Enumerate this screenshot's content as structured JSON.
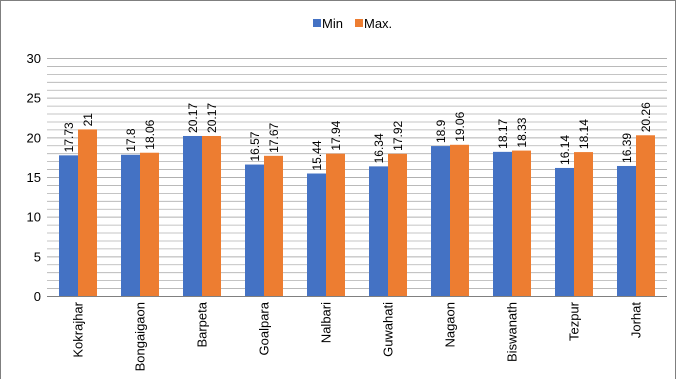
{
  "chart_data": {
    "type": "bar",
    "categories": [
      "Kokrajhar",
      "Bongaigaon",
      "Barpeta",
      "Goalpara",
      "Nalbari",
      "Guwahati",
      "Nagaon",
      "Biswanath",
      "Tezpur",
      "Jorhat"
    ],
    "series": [
      {
        "name": "Min",
        "values": [
          17.73,
          17.8,
          20.17,
          16.57,
          15.44,
          16.34,
          18.9,
          18.17,
          16.14,
          16.39
        ],
        "labels": [
          "17.73",
          "17.8",
          "20.17",
          "16.57",
          "15.44",
          "16.34",
          "18.9",
          "18.17",
          "16.14",
          "16.39"
        ],
        "color": "#4472c4"
      },
      {
        "name": "Max.",
        "values": [
          21,
          18.06,
          20.17,
          17.67,
          17.94,
          17.92,
          19.06,
          18.33,
          18.14,
          20.26
        ],
        "labels": [
          "21",
          "18.06",
          "20.17",
          "17.67",
          "17.94",
          "17.92",
          "19.06",
          "18.33",
          "18.14",
          "20.26"
        ],
        "color": "#ed7d31"
      }
    ],
    "ylim": [
      0,
      30
    ],
    "yticks": [
      0,
      5,
      10,
      15,
      20,
      25,
      30
    ],
    "minor_gridlines": true,
    "legend_position": "top-center",
    "gridline_color": "#b0b0b0",
    "axis_color": "#808080"
  }
}
